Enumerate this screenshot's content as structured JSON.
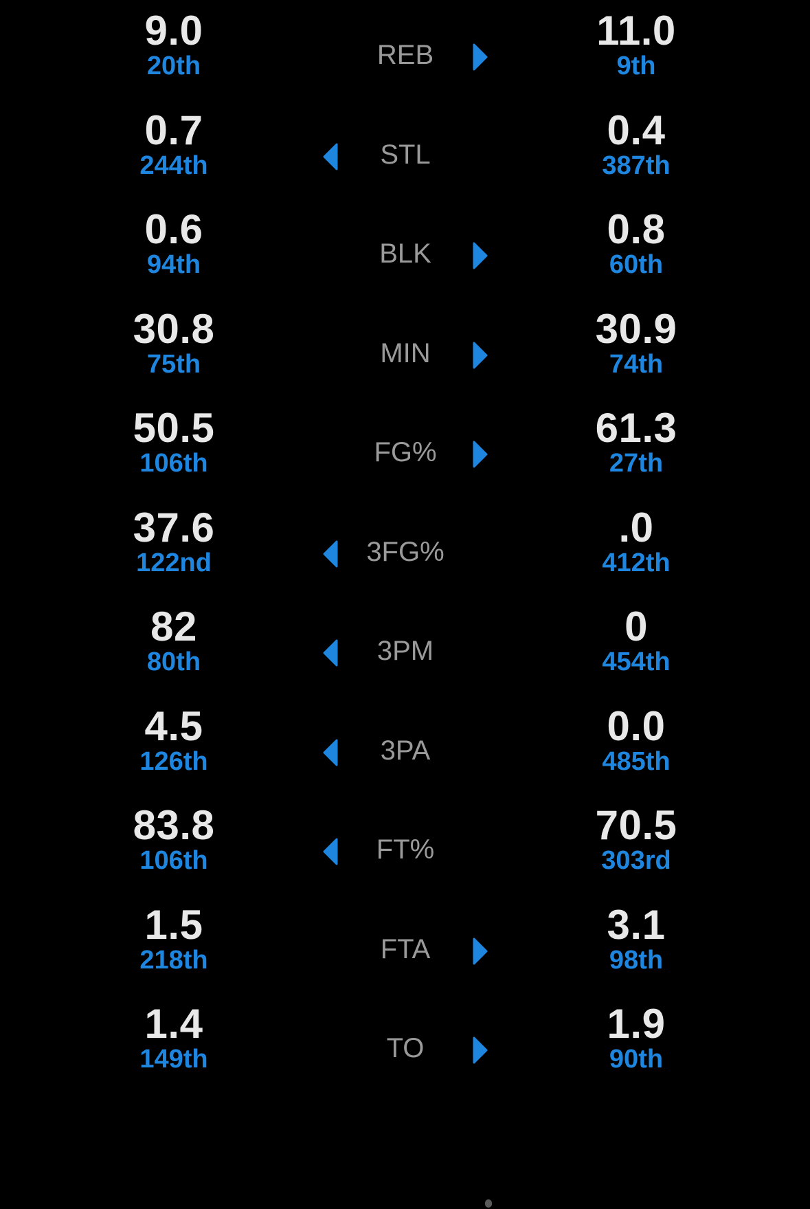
{
  "accent_color": "#1f86e0",
  "rows": [
    {
      "label": "REB",
      "left_value": "9.0",
      "left_rank": "20th",
      "right_value": "11.0",
      "right_rank": "9th",
      "arrow": "right"
    },
    {
      "label": "STL",
      "left_value": "0.7",
      "left_rank": "244th",
      "right_value": "0.4",
      "right_rank": "387th",
      "arrow": "left"
    },
    {
      "label": "BLK",
      "left_value": "0.6",
      "left_rank": "94th",
      "right_value": "0.8",
      "right_rank": "60th",
      "arrow": "right"
    },
    {
      "label": "MIN",
      "left_value": "30.8",
      "left_rank": "75th",
      "right_value": "30.9",
      "right_rank": "74th",
      "arrow": "right"
    },
    {
      "label": "FG%",
      "left_value": "50.5",
      "left_rank": "106th",
      "right_value": "61.3",
      "right_rank": "27th",
      "arrow": "right"
    },
    {
      "label": "3FG%",
      "left_value": "37.6",
      "left_rank": "122nd",
      "right_value": ".0",
      "right_rank": "412th",
      "arrow": "left"
    },
    {
      "label": "3PM",
      "left_value": "82",
      "left_rank": "80th",
      "right_value": "0",
      "right_rank": "454th",
      "arrow": "left"
    },
    {
      "label": "3PA",
      "left_value": "4.5",
      "left_rank": "126th",
      "right_value": "0.0",
      "right_rank": "485th",
      "arrow": "left"
    },
    {
      "label": "FT%",
      "left_value": "83.8",
      "left_rank": "106th",
      "right_value": "70.5",
      "right_rank": "303rd",
      "arrow": "left"
    },
    {
      "label": "FTA",
      "left_value": "1.5",
      "left_rank": "218th",
      "right_value": "3.1",
      "right_rank": "98th",
      "arrow": "right"
    },
    {
      "label": "TO",
      "left_value": "1.4",
      "left_rank": "149th",
      "right_value": "1.9",
      "right_rank": "90th",
      "arrow": "right"
    }
  ]
}
